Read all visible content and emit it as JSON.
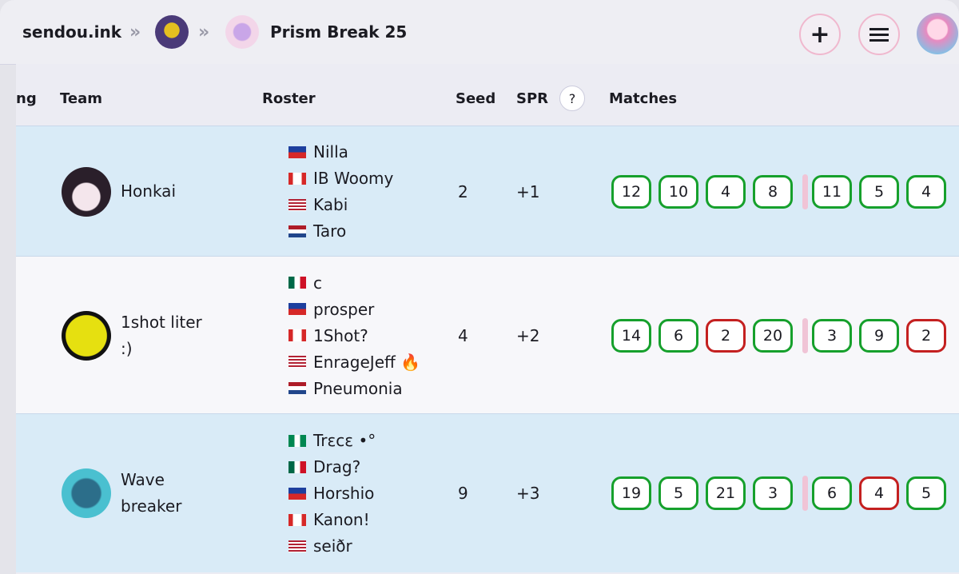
{
  "header": {
    "site": "sendou.ink",
    "tournament": "Prism Break 25",
    "add_button": "+"
  },
  "table": {
    "columns": [
      "ng",
      "Team",
      "Roster",
      "Seed",
      "SPR",
      "?",
      "Matches"
    ],
    "rows": [
      {
        "team": "Honkai",
        "roster": [
          "Nilla",
          "IB Woomy",
          "Kabi",
          "Taro"
        ],
        "seed": 2,
        "spr": "+1",
        "matches": [
          [
            {
              "value": 12,
              "result": "win"
            },
            {
              "value": 10,
              "result": "win"
            },
            {
              "value": 4,
              "result": "win"
            },
            {
              "value": 8,
              "result": "win"
            }
          ],
          [
            {
              "value": 11,
              "result": "win"
            },
            {
              "value": 5,
              "result": "win"
            },
            {
              "value": 4,
              "result": "win"
            }
          ]
        ]
      },
      {
        "team": "1shot liter :)",
        "roster": [
          "c",
          "prosper",
          "1Shot?",
          "EnrageJeff 🔥",
          "Pneumonia"
        ],
        "seed": 4,
        "spr": "+2",
        "matches": [
          [
            {
              "value": 14,
              "result": "win"
            },
            {
              "value": 6,
              "result": "win"
            },
            {
              "value": 2,
              "result": "loss"
            },
            {
              "value": 20,
              "result": "win"
            }
          ],
          [
            {
              "value": 3,
              "result": "win"
            },
            {
              "value": 9,
              "result": "win"
            },
            {
              "value": 2,
              "result": "loss"
            }
          ]
        ]
      },
      {
        "team": "Wave breaker",
        "roster": [
          "Trεcε •°",
          "Drag?",
          "Horshio",
          "Kanon!",
          "seiðr"
        ],
        "seed": 9,
        "spr": "+3",
        "matches": [
          [
            {
              "value": 19,
              "result": "win"
            },
            {
              "value": 5,
              "result": "win"
            },
            {
              "value": 21,
              "result": "win"
            },
            {
              "value": 3,
              "result": "win"
            }
          ],
          [
            {
              "value": 6,
              "result": "win"
            },
            {
              "value": 4,
              "result": "loss"
            },
            {
              "value": 5,
              "result": "win"
            }
          ]
        ]
      }
    ]
  }
}
